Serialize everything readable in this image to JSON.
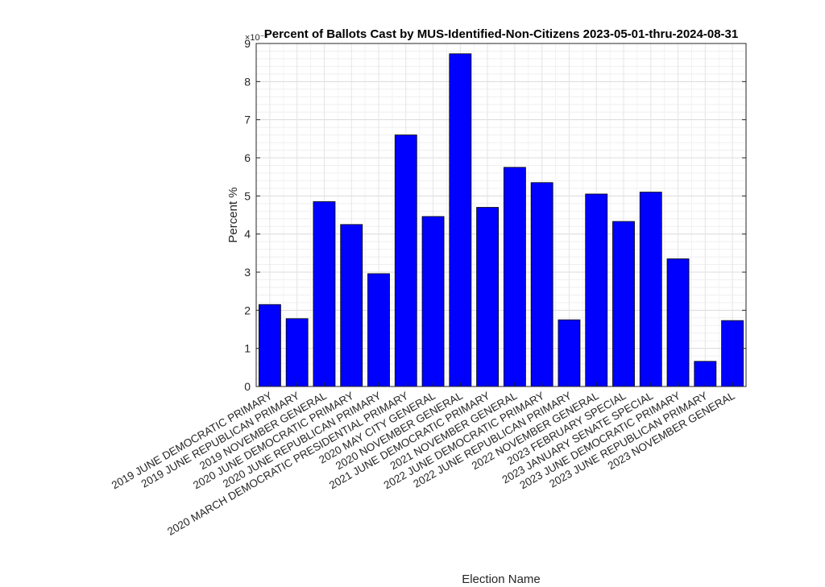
{
  "chart_data": {
    "type": "bar",
    "title": "Percent of Ballots Cast by MUS-Identified-Non-Citizens 2023-05-01-thru-2024-08-31",
    "xlabel": "Election Name",
    "ylabel": "Percent %",
    "y_multiplier": "×10⁻³",
    "ylim": [
      0,
      9
    ],
    "yticks": [
      "0",
      "1",
      "2",
      "3",
      "4",
      "5",
      "6",
      "7",
      "8",
      "9"
    ],
    "grid": true,
    "minor_grid": true,
    "bar_color": "#0000FF",
    "categories": [
      "2019 JUNE DEMOCRATIC PRIMARY",
      "2019 JUNE REPUBLICAN PRIMARY",
      "2019 NOVEMBER GENERAL",
      "2020 JUNE DEMOCRATIC PRIMARY",
      "2020 JUNE REPUBLICAN PRIMARY",
      "2020 MARCH DEMOCRATIC PRESIDENTIAL PRIMARY",
      "2020 MAY CITY GENERAL",
      "2020 NOVEMBER GENERAL",
      "2021 JUNE DEMOCRATIC PRIMARY",
      "2021 NOVEMBER GENERAL",
      "2022 JUNE DEMOCRATIC PRIMARY",
      "2022 JUNE REPUBLICAN PRIMARY",
      "2022 NOVEMBER GENERAL",
      "2023 FEBRUARY SPECIAL",
      "2023 JANUARY SENATE SPECIAL",
      "2023 JUNE DEMOCRATIC PRIMARY",
      "2023 JUNE REPUBLICAN PRIMARY",
      "2023 NOVEMBER GENERAL"
    ],
    "values": [
      2.15,
      1.78,
      4.85,
      4.25,
      2.96,
      6.6,
      4.46,
      8.73,
      4.7,
      5.75,
      5.35,
      1.75,
      5.05,
      4.33,
      5.1,
      3.35,
      0.66,
      1.73
    ]
  }
}
